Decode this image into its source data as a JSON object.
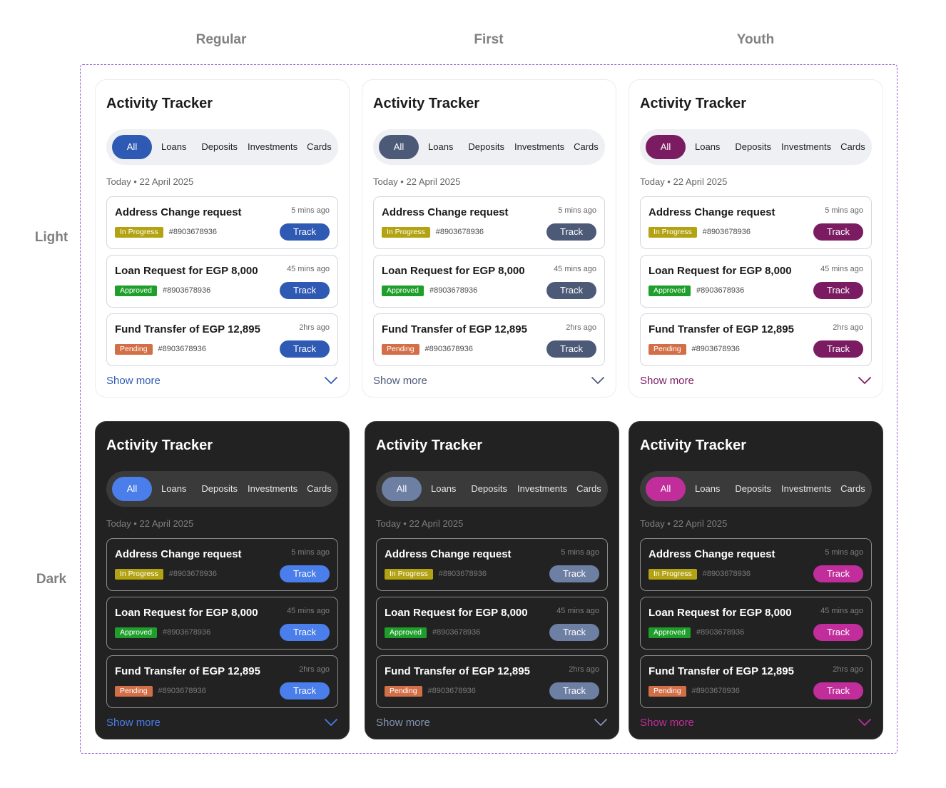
{
  "columns": [
    "Regular",
    "First",
    "Youth"
  ],
  "rows": [
    "Light",
    "Dark"
  ],
  "themes": {
    "regular_light": {
      "accent": "#2f5ab4",
      "link": "#2f5ab4"
    },
    "first_light": {
      "accent": "#4c5a78",
      "link": "#4c5a78"
    },
    "youth_light": {
      "accent": "#7b1c62",
      "link": "#7b1c62"
    },
    "regular_dark": {
      "accent": "#4a7eea",
      "link": "#4a7eea"
    },
    "first_dark": {
      "accent": "#6d7fa3",
      "link": "#8393b4"
    },
    "youth_dark": {
      "accent": "#c12e9c",
      "link": "#c12e9c"
    }
  },
  "widget": {
    "title": "Activity Tracker",
    "tabs": [
      "All",
      "Loans",
      "Deposits",
      "Investments",
      "Cards"
    ],
    "date": "Today • 22 April 2025",
    "items": [
      {
        "title": "Address Change request",
        "time": "5 mins ago",
        "status": "In Progress",
        "ref": "#8903678936",
        "action": "Track"
      },
      {
        "title": "Loan Request for EGP 8,000",
        "time": "45 mins ago",
        "status": "Approved",
        "ref": "#8903678936",
        "action": "Track"
      },
      {
        "title": "Fund Transfer of EGP 12,895",
        "time": "2hrs ago",
        "status": "Pending",
        "ref": "#8903678936",
        "action": "Track"
      }
    ],
    "show_more": "Show more",
    "chevron_icon": "chevron-down-icon"
  }
}
